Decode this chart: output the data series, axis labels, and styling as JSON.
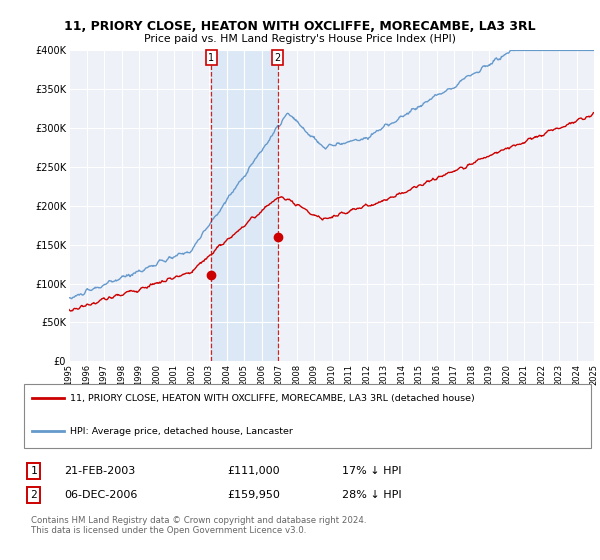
{
  "title": "11, PRIORY CLOSE, HEATON WITH OXCLIFFE, MORECAMBE, LA3 3RL",
  "subtitle": "Price paid vs. HM Land Registry's House Price Index (HPI)",
  "legend_label_red": "11, PRIORY CLOSE, HEATON WITH OXCLIFFE, MORECAMBE, LA3 3RL (detached house)",
  "legend_label_blue": "HPI: Average price, detached house, Lancaster",
  "transaction1_label": "1",
  "transaction1_date": "21-FEB-2003",
  "transaction1_price": "£111,000",
  "transaction1_hpi": "17% ↓ HPI",
  "transaction2_label": "2",
  "transaction2_date": "06-DEC-2006",
  "transaction2_price": "£159,950",
  "transaction2_hpi": "28% ↓ HPI",
  "footer": "Contains HM Land Registry data © Crown copyright and database right 2024.\nThis data is licensed under the Open Government Licence v3.0.",
  "ylim": [
    0,
    400000
  ],
  "yticks": [
    0,
    50000,
    100000,
    150000,
    200000,
    250000,
    300000,
    350000,
    400000
  ],
  "ytick_labels": [
    "£0",
    "£50K",
    "£100K",
    "£150K",
    "£200K",
    "£250K",
    "£300K",
    "£350K",
    "£400K"
  ],
  "color_red": "#cc0000",
  "color_blue": "#6699cc",
  "color_bg": "#eef2f8",
  "color_shade": "#dce8f5",
  "marker1_x": 2003.13,
  "marker1_y": 111000,
  "marker2_x": 2006.92,
  "marker2_y": 159950,
  "vline1_x": 2003.13,
  "vline2_x": 2006.92,
  "xmin": 1995,
  "xmax": 2025
}
